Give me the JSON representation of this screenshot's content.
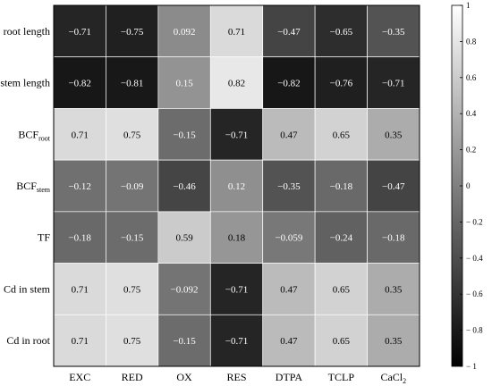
{
  "chart_data": {
    "type": "heatmap",
    "colormap": "grayscale (black = -1, white = 1)",
    "grid": true,
    "legend": "colorbar-right",
    "rows": [
      {
        "label": "root length",
        "sub": ""
      },
      {
        "label": "stem length",
        "sub": ""
      },
      {
        "label": "BCF",
        "sub": "root"
      },
      {
        "label": "BCF",
        "sub": "stem"
      },
      {
        "label": "TF",
        "sub": ""
      },
      {
        "label": "Cd in stem",
        "sub": ""
      },
      {
        "label": "Cd in root",
        "sub": ""
      }
    ],
    "columns": [
      {
        "label": "EXC",
        "sub": ""
      },
      {
        "label": "RED",
        "sub": ""
      },
      {
        "label": "OX",
        "sub": ""
      },
      {
        "label": "RES",
        "sub": ""
      },
      {
        "label": "DTPA",
        "sub": ""
      },
      {
        "label": "TCLP",
        "sub": ""
      },
      {
        "label": "CaCl",
        "sub": "2"
      }
    ],
    "values": [
      [
        -0.71,
        -0.75,
        0.092,
        0.71,
        -0.47,
        -0.65,
        -0.35
      ],
      [
        -0.82,
        -0.81,
        0.15,
        0.82,
        -0.82,
        -0.76,
        -0.71
      ],
      [
        0.71,
        0.75,
        -0.15,
        -0.71,
        0.47,
        0.65,
        0.35
      ],
      [
        -0.12,
        -0.09,
        -0.46,
        0.12,
        -0.35,
        -0.18,
        -0.47
      ],
      [
        -0.18,
        -0.15,
        0.59,
        0.18,
        -0.059,
        -0.24,
        -0.18
      ],
      [
        0.71,
        0.75,
        -0.092,
        -0.71,
        0.47,
        0.65,
        0.35
      ],
      [
        0.71,
        0.75,
        -0.15,
        -0.71,
        0.47,
        0.65,
        0.35
      ]
    ],
    "cell_labels": [
      [
        "−0.71",
        "−0.75",
        "0.092",
        "0.71",
        "−0.47",
        "−0.65",
        "−0.35"
      ],
      [
        "−0.82",
        "−0.81",
        "0.15",
        "0.82",
        "−0.82",
        "−0.76",
        "−0.71"
      ],
      [
        "0.71",
        "0.75",
        "−0.15",
        "−0.71",
        "0.47",
        "0.65",
        "0.35"
      ],
      [
        "−0.12",
        "−0.09",
        "−0.46",
        "0.12",
        "−0.35",
        "−0.18",
        "−0.47"
      ],
      [
        "−0.18",
        "−0.15",
        "0.59",
        "0.18",
        "−0.059",
        "−0.24",
        "−0.18"
      ],
      [
        "0.71",
        "0.75",
        "−0.092",
        "−0.71",
        "0.47",
        "0.65",
        "0.35"
      ],
      [
        "0.71",
        "0.75",
        "−0.15",
        "−0.71",
        "0.47",
        "0.65",
        "0.35"
      ]
    ],
    "colorbar": {
      "range": [
        -1,
        1
      ],
      "ticks": [
        1,
        0.8,
        0.6,
        0.4,
        0.2,
        0,
        -0.2,
        -0.4,
        -0.6,
        -0.8,
        -1
      ],
      "tick_labels": [
        "1",
        "0.8",
        "0.6",
        "0.4",
        "0.2",
        "0",
        "− 0.2",
        "− 0.4",
        "− 0.6",
        "− 0.8",
        "− 1"
      ]
    }
  }
}
